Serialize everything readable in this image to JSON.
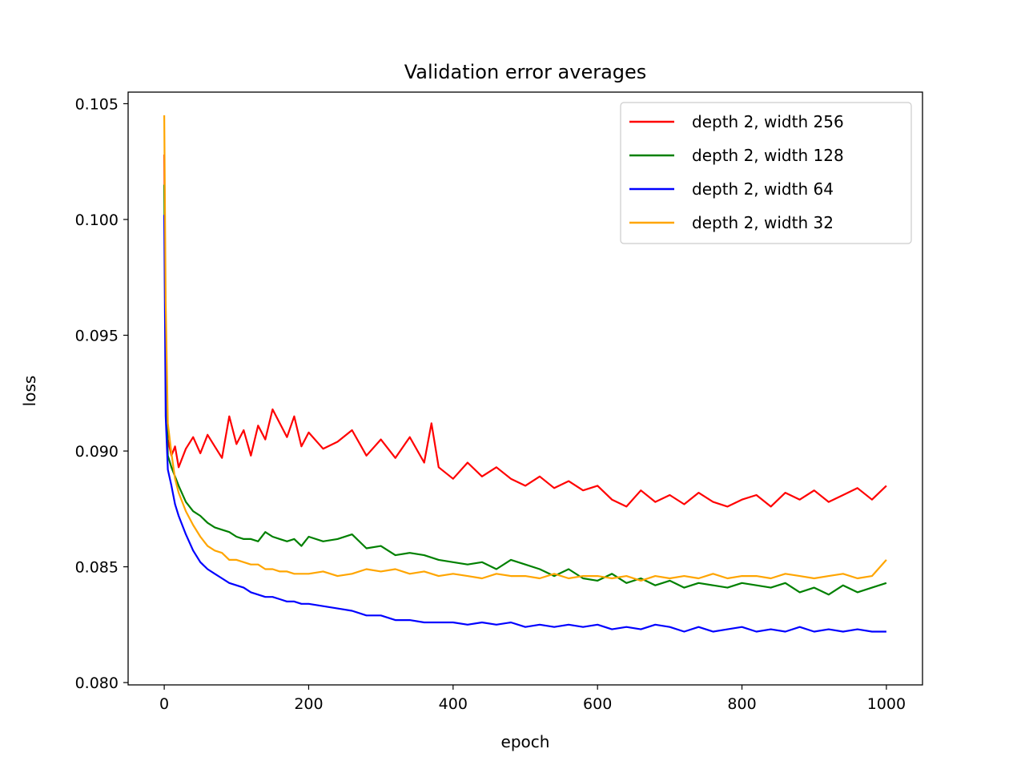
{
  "chart_data": {
    "type": "line",
    "title": "Validation error averages",
    "xlabel": "epoch",
    "ylabel": "loss",
    "xlim": [
      -50,
      1050
    ],
    "ylim": [
      0.0799,
      0.1055
    ],
    "grid": false,
    "legend_position": "top-right",
    "x_ticks": [
      0,
      200,
      400,
      600,
      800,
      1000
    ],
    "x_tick_labels": [
      "0",
      "200",
      "400",
      "600",
      "800",
      "1000"
    ],
    "y_ticks": [
      0.08,
      0.085,
      0.09,
      0.095,
      0.1,
      0.105
    ],
    "y_tick_labels": [
      "0.080",
      "0.085",
      "0.090",
      "0.095",
      "0.100",
      "0.105"
    ],
    "series": [
      {
        "name": "depth 2, width 256",
        "color": "#ff0000",
        "x": [
          0,
          2,
          5,
          10,
          15,
          20,
          30,
          40,
          50,
          60,
          70,
          80,
          90,
          100,
          110,
          120,
          130,
          140,
          150,
          160,
          170,
          180,
          190,
          200,
          220,
          240,
          260,
          280,
          300,
          320,
          340,
          360,
          370,
          380,
          400,
          420,
          440,
          460,
          480,
          500,
          520,
          540,
          560,
          580,
          600,
          620,
          640,
          660,
          680,
          700,
          720,
          740,
          760,
          780,
          800,
          820,
          840,
          860,
          880,
          900,
          920,
          940,
          960,
          980,
          1000
        ],
        "y": [
          0.1028,
          0.095,
          0.0905,
          0.0898,
          0.0902,
          0.0893,
          0.0901,
          0.0906,
          0.0899,
          0.0907,
          0.0902,
          0.0897,
          0.0915,
          0.0903,
          0.0909,
          0.0898,
          0.0911,
          0.0905,
          0.0918,
          0.0912,
          0.0906,
          0.0915,
          0.0902,
          0.0908,
          0.0901,
          0.0904,
          0.0909,
          0.0898,
          0.0905,
          0.0897,
          0.0906,
          0.0895,
          0.0912,
          0.0893,
          0.0888,
          0.0895,
          0.0889,
          0.0893,
          0.0888,
          0.0885,
          0.0889,
          0.0884,
          0.0887,
          0.0883,
          0.0885,
          0.0879,
          0.0876,
          0.0883,
          0.0878,
          0.0881,
          0.0877,
          0.0882,
          0.0878,
          0.0876,
          0.0879,
          0.0881,
          0.0876,
          0.0882,
          0.0879,
          0.0883,
          0.0878,
          0.0881,
          0.0884,
          0.0879,
          0.0885
        ]
      },
      {
        "name": "depth 2, width 128",
        "color": "#008000",
        "x": [
          0,
          2,
          5,
          10,
          15,
          20,
          30,
          40,
          50,
          60,
          70,
          80,
          90,
          100,
          110,
          120,
          130,
          140,
          150,
          160,
          170,
          180,
          190,
          200,
          220,
          240,
          260,
          280,
          300,
          320,
          340,
          360,
          380,
          400,
          420,
          440,
          460,
          480,
          500,
          520,
          540,
          560,
          580,
          600,
          620,
          640,
          660,
          680,
          700,
          720,
          740,
          760,
          780,
          800,
          820,
          840,
          860,
          880,
          900,
          920,
          940,
          960,
          980,
          1000
        ],
        "y": [
          0.1015,
          0.0935,
          0.0898,
          0.0893,
          0.0889,
          0.0885,
          0.0878,
          0.0874,
          0.0872,
          0.0869,
          0.0867,
          0.0866,
          0.0865,
          0.0863,
          0.0862,
          0.0862,
          0.0861,
          0.0865,
          0.0863,
          0.0862,
          0.0861,
          0.0862,
          0.0859,
          0.0863,
          0.0861,
          0.0862,
          0.0864,
          0.0858,
          0.0859,
          0.0855,
          0.0856,
          0.0855,
          0.0853,
          0.0852,
          0.0851,
          0.0852,
          0.0849,
          0.0853,
          0.0851,
          0.0849,
          0.0846,
          0.0849,
          0.0845,
          0.0844,
          0.0847,
          0.0843,
          0.0845,
          0.0842,
          0.0844,
          0.0841,
          0.0843,
          0.0842,
          0.0841,
          0.0843,
          0.0842,
          0.0841,
          0.0843,
          0.0839,
          0.0841,
          0.0838,
          0.0842,
          0.0839,
          0.0841,
          0.0843
        ]
      },
      {
        "name": "depth 2, width 64",
        "color": "#0000ff",
        "x": [
          0,
          2,
          5,
          10,
          15,
          20,
          30,
          40,
          50,
          60,
          70,
          80,
          90,
          100,
          110,
          120,
          130,
          140,
          150,
          160,
          170,
          180,
          190,
          200,
          220,
          240,
          260,
          280,
          300,
          320,
          340,
          360,
          380,
          400,
          420,
          440,
          460,
          480,
          500,
          520,
          540,
          560,
          580,
          600,
          620,
          640,
          660,
          680,
          700,
          720,
          740,
          760,
          780,
          800,
          820,
          840,
          860,
          880,
          900,
          920,
          940,
          960,
          980,
          1000
        ],
        "y": [
          0.1002,
          0.0915,
          0.0892,
          0.0885,
          0.0877,
          0.0872,
          0.0864,
          0.0857,
          0.0852,
          0.0849,
          0.0847,
          0.0845,
          0.0843,
          0.0842,
          0.0841,
          0.0839,
          0.0838,
          0.0837,
          0.0837,
          0.0836,
          0.0835,
          0.0835,
          0.0834,
          0.0834,
          0.0833,
          0.0832,
          0.0831,
          0.0829,
          0.0829,
          0.0827,
          0.0827,
          0.0826,
          0.0826,
          0.0826,
          0.0825,
          0.0826,
          0.0825,
          0.0826,
          0.0824,
          0.0825,
          0.0824,
          0.0825,
          0.0824,
          0.0825,
          0.0823,
          0.0824,
          0.0823,
          0.0825,
          0.0824,
          0.0822,
          0.0824,
          0.0822,
          0.0823,
          0.0824,
          0.0822,
          0.0823,
          0.0822,
          0.0824,
          0.0822,
          0.0823,
          0.0822,
          0.0823,
          0.0822,
          0.0822
        ]
      },
      {
        "name": "depth 2, width 32",
        "color": "#ffa500",
        "x": [
          0,
          2,
          5,
          10,
          15,
          20,
          30,
          40,
          50,
          60,
          70,
          80,
          90,
          100,
          110,
          120,
          130,
          140,
          150,
          160,
          170,
          180,
          190,
          200,
          220,
          240,
          260,
          280,
          300,
          320,
          340,
          360,
          380,
          400,
          420,
          440,
          460,
          480,
          500,
          520,
          540,
          560,
          580,
          600,
          620,
          640,
          660,
          680,
          700,
          720,
          740,
          760,
          780,
          800,
          820,
          840,
          860,
          880,
          900,
          920,
          940,
          960,
          980,
          1000
        ],
        "y": [
          0.1045,
          0.0965,
          0.0912,
          0.0899,
          0.0888,
          0.0882,
          0.0874,
          0.0868,
          0.0863,
          0.0859,
          0.0857,
          0.0856,
          0.0853,
          0.0853,
          0.0852,
          0.0851,
          0.0851,
          0.0849,
          0.0849,
          0.0848,
          0.0848,
          0.0847,
          0.0847,
          0.0847,
          0.0848,
          0.0846,
          0.0847,
          0.0849,
          0.0848,
          0.0849,
          0.0847,
          0.0848,
          0.0846,
          0.0847,
          0.0846,
          0.0845,
          0.0847,
          0.0846,
          0.0846,
          0.0845,
          0.0847,
          0.0845,
          0.0846,
          0.0846,
          0.0845,
          0.0846,
          0.0844,
          0.0846,
          0.0845,
          0.0846,
          0.0845,
          0.0847,
          0.0845,
          0.0846,
          0.0846,
          0.0845,
          0.0847,
          0.0846,
          0.0845,
          0.0846,
          0.0847,
          0.0845,
          0.0846,
          0.0853
        ]
      }
    ]
  }
}
